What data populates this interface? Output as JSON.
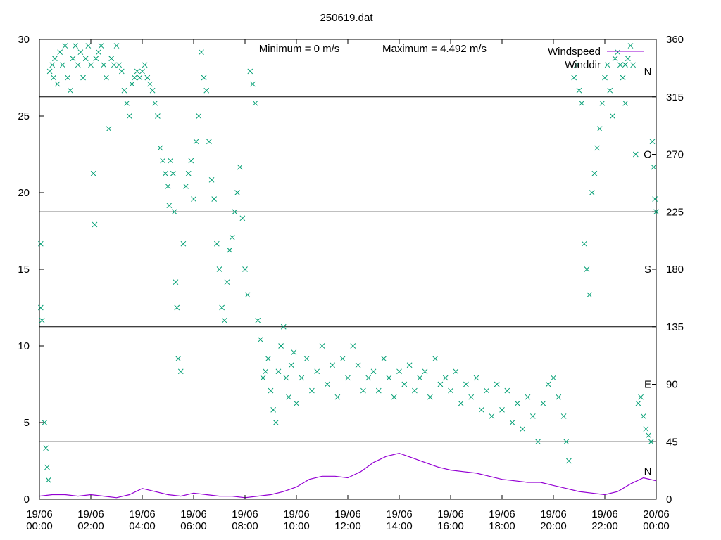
{
  "chart_data": {
    "type": "line",
    "title": "250619.dat",
    "annotations": {
      "minimum": "Minimum = 0 m/s",
      "maximum": "Maximum = 4.492 m/s"
    },
    "x_axis": {
      "range_hours": [
        0,
        24
      ],
      "ticks": [
        {
          "hour": 0,
          "line1": "19/06",
          "line2": "00:00"
        },
        {
          "hour": 2,
          "line1": "19/06",
          "line2": "02:00"
        },
        {
          "hour": 4,
          "line1": "19/06",
          "line2": "04:00"
        },
        {
          "hour": 6,
          "line1": "19/06",
          "line2": "06:00"
        },
        {
          "hour": 8,
          "line1": "19/06",
          "line2": "08:00"
        },
        {
          "hour": 10,
          "line1": "19/06",
          "line2": "10:00"
        },
        {
          "hour": 12,
          "line1": "19/06",
          "line2": "12:00"
        },
        {
          "hour": 14,
          "line1": "19/06",
          "line2": "14:00"
        },
        {
          "hour": 16,
          "line1": "19/06",
          "line2": "16:00"
        },
        {
          "hour": 18,
          "line1": "19/06",
          "line2": "18:00"
        },
        {
          "hour": 20,
          "line1": "19/06",
          "line2": "20:00"
        },
        {
          "hour": 22,
          "line1": "19/06",
          "line2": "22:00"
        },
        {
          "hour": 24,
          "line1": "20/06",
          "line2": "00:00"
        }
      ]
    },
    "y_left": {
      "range": [
        0,
        30
      ],
      "ticks": [
        "0",
        "5",
        "10",
        "15",
        "20",
        "25",
        "30"
      ]
    },
    "y_right": {
      "range": [
        0,
        360
      ],
      "ticks": [
        "0",
        "45",
        "90",
        "135",
        "180",
        "225",
        "270",
        "315",
        "360"
      ],
      "gridlines": [
        45,
        135,
        225,
        315
      ],
      "compass": [
        {
          "value": 22,
          "label": "N"
        },
        {
          "value": 90,
          "label": "E"
        },
        {
          "value": 180,
          "label": "S"
        },
        {
          "value": 270,
          "label": "O"
        },
        {
          "value": 335,
          "label": "N"
        }
      ]
    },
    "legend": {
      "position": "top-right",
      "items": [
        "Windspeed",
        "Winddir"
      ]
    },
    "colors": {
      "windspeed": "#9400d3",
      "winddir": "#009e73"
    },
    "series": [
      {
        "name": "Windspeed",
        "axis": "left",
        "style": "line",
        "x": [
          0,
          0.5,
          1,
          1.5,
          2,
          2.5,
          3,
          3.5,
          4,
          4.5,
          5,
          5.5,
          6,
          6.5,
          7,
          7.5,
          8,
          8.5,
          9,
          9.5,
          10,
          10.5,
          11,
          11.5,
          12,
          12.5,
          13,
          13.5,
          14,
          14.5,
          15,
          15.5,
          16,
          16.5,
          17,
          17.5,
          18,
          18.5,
          19,
          19.5,
          20,
          20.5,
          21,
          21.5,
          22,
          22.5,
          23,
          23.5,
          24
        ],
        "y": [
          0.2,
          0.3,
          0.3,
          0.2,
          0.3,
          0.2,
          0.1,
          0.3,
          0.7,
          0.5,
          0.3,
          0.2,
          0.4,
          0.3,
          0.2,
          0.2,
          0.1,
          0.2,
          0.3,
          0.5,
          0.8,
          1.3,
          1.5,
          1.5,
          1.4,
          1.8,
          2.4,
          2.8,
          3.0,
          2.7,
          2.4,
          2.1,
          1.9,
          1.8,
          1.7,
          1.5,
          1.3,
          1.2,
          1.1,
          1.1,
          0.9,
          0.7,
          0.5,
          0.4,
          0.3,
          0.5,
          1.0,
          1.4,
          1.2
        ]
      },
      {
        "name": "Winddir",
        "axis": "right",
        "style": "points",
        "points": [
          [
            0.05,
            200
          ],
          [
            0.05,
            150
          ],
          [
            0.1,
            140
          ],
          [
            0.2,
            60
          ],
          [
            0.25,
            40
          ],
          [
            0.3,
            25
          ],
          [
            0.35,
            15
          ],
          [
            0.4,
            335
          ],
          [
            0.5,
            340
          ],
          [
            0.55,
            330
          ],
          [
            0.6,
            345
          ],
          [
            0.7,
            325
          ],
          [
            0.8,
            350
          ],
          [
            0.9,
            340
          ],
          [
            1.0,
            355
          ],
          [
            1.1,
            330
          ],
          [
            1.2,
            320
          ],
          [
            1.3,
            345
          ],
          [
            1.4,
            355
          ],
          [
            1.5,
            340
          ],
          [
            1.6,
            350
          ],
          [
            1.7,
            330
          ],
          [
            1.8,
            345
          ],
          [
            1.9,
            355
          ],
          [
            2.0,
            340
          ],
          [
            2.1,
            255
          ],
          [
            2.15,
            215
          ],
          [
            2.2,
            345
          ],
          [
            2.3,
            350
          ],
          [
            2.4,
            355
          ],
          [
            2.5,
            340
          ],
          [
            2.6,
            330
          ],
          [
            2.7,
            290
          ],
          [
            2.8,
            345
          ],
          [
            2.9,
            340
          ],
          [
            3.0,
            355
          ],
          [
            3.1,
            340
          ],
          [
            3.2,
            335
          ],
          [
            3.3,
            320
          ],
          [
            3.4,
            310
          ],
          [
            3.5,
            300
          ],
          [
            3.6,
            325
          ],
          [
            3.7,
            330
          ],
          [
            3.8,
            335
          ],
          [
            3.9,
            330
          ],
          [
            4.0,
            335
          ],
          [
            4.1,
            340
          ],
          [
            4.2,
            330
          ],
          [
            4.3,
            325
          ],
          [
            4.4,
            320
          ],
          [
            4.5,
            310
          ],
          [
            4.6,
            300
          ],
          [
            4.7,
            275
          ],
          [
            4.8,
            265
          ],
          [
            4.9,
            255
          ],
          [
            5.0,
            245
          ],
          [
            5.05,
            230
          ],
          [
            5.1,
            265
          ],
          [
            5.2,
            255
          ],
          [
            5.25,
            225
          ],
          [
            5.3,
            170
          ],
          [
            5.35,
            150
          ],
          [
            5.4,
            110
          ],
          [
            5.5,
            100
          ],
          [
            5.6,
            200
          ],
          [
            5.7,
            245
          ],
          [
            5.8,
            255
          ],
          [
            5.9,
            265
          ],
          [
            6.0,
            235
          ],
          [
            6.1,
            280
          ],
          [
            6.2,
            300
          ],
          [
            6.3,
            350
          ],
          [
            6.4,
            330
          ],
          [
            6.5,
            320
          ],
          [
            6.6,
            280
          ],
          [
            6.7,
            250
          ],
          [
            6.8,
            235
          ],
          [
            6.9,
            200
          ],
          [
            7.0,
            180
          ],
          [
            7.1,
            150
          ],
          [
            7.2,
            140
          ],
          [
            7.3,
            170
          ],
          [
            7.4,
            195
          ],
          [
            7.5,
            205
          ],
          [
            7.6,
            225
          ],
          [
            7.7,
            240
          ],
          [
            7.8,
            260
          ],
          [
            7.9,
            220
          ],
          [
            8.0,
            180
          ],
          [
            8.1,
            160
          ],
          [
            8.2,
            335
          ],
          [
            8.3,
            325
          ],
          [
            8.4,
            310
          ],
          [
            8.5,
            140
          ],
          [
            8.6,
            125
          ],
          [
            8.7,
            95
          ],
          [
            8.8,
            100
          ],
          [
            8.9,
            110
          ],
          [
            9.0,
            85
          ],
          [
            9.1,
            70
          ],
          [
            9.2,
            60
          ],
          [
            9.3,
            100
          ],
          [
            9.4,
            120
          ],
          [
            9.5,
            135
          ],
          [
            9.6,
            95
          ],
          [
            9.7,
            80
          ],
          [
            9.8,
            105
          ],
          [
            9.9,
            115
          ],
          [
            10.0,
            75
          ],
          [
            10.2,
            95
          ],
          [
            10.4,
            110
          ],
          [
            10.6,
            85
          ],
          [
            10.8,
            100
          ],
          [
            11.0,
            120
          ],
          [
            11.2,
            90
          ],
          [
            11.4,
            105
          ],
          [
            11.6,
            80
          ],
          [
            11.8,
            110
          ],
          [
            12.0,
            95
          ],
          [
            12.2,
            120
          ],
          [
            12.4,
            105
          ],
          [
            12.6,
            85
          ],
          [
            12.8,
            95
          ],
          [
            13.0,
            100
          ],
          [
            13.2,
            85
          ],
          [
            13.4,
            110
          ],
          [
            13.6,
            95
          ],
          [
            13.8,
            80
          ],
          [
            14.0,
            100
          ],
          [
            14.2,
            90
          ],
          [
            14.4,
            105
          ],
          [
            14.6,
            85
          ],
          [
            14.8,
            95
          ],
          [
            15.0,
            100
          ],
          [
            15.2,
            80
          ],
          [
            15.4,
            110
          ],
          [
            15.6,
            90
          ],
          [
            15.8,
            95
          ],
          [
            16.0,
            85
          ],
          [
            16.2,
            100
          ],
          [
            16.4,
            75
          ],
          [
            16.6,
            90
          ],
          [
            16.8,
            80
          ],
          [
            17.0,
            95
          ],
          [
            17.2,
            70
          ],
          [
            17.4,
            85
          ],
          [
            17.6,
            65
          ],
          [
            17.8,
            90
          ],
          [
            18.0,
            70
          ],
          [
            18.2,
            85
          ],
          [
            18.4,
            60
          ],
          [
            18.6,
            75
          ],
          [
            18.8,
            55
          ],
          [
            19.0,
            80
          ],
          [
            19.2,
            65
          ],
          [
            19.4,
            45
          ],
          [
            19.6,
            75
          ],
          [
            19.8,
            90
          ],
          [
            20.0,
            95
          ],
          [
            20.2,
            80
          ],
          [
            20.4,
            65
          ],
          [
            20.5,
            45
          ],
          [
            20.6,
            30
          ],
          [
            20.8,
            330
          ],
          [
            20.9,
            340
          ],
          [
            21.0,
            320
          ],
          [
            21.1,
            310
          ],
          [
            21.2,
            200
          ],
          [
            21.3,
            180
          ],
          [
            21.4,
            160
          ],
          [
            21.5,
            240
          ],
          [
            21.6,
            255
          ],
          [
            21.7,
            275
          ],
          [
            21.8,
            290
          ],
          [
            21.9,
            310
          ],
          [
            22.0,
            330
          ],
          [
            22.1,
            340
          ],
          [
            22.2,
            320
          ],
          [
            22.3,
            300
          ],
          [
            22.4,
            345
          ],
          [
            22.5,
            350
          ],
          [
            22.6,
            340
          ],
          [
            22.7,
            330
          ],
          [
            22.8,
            310
          ],
          [
            22.9,
            345
          ],
          [
            23.0,
            355
          ],
          [
            23.1,
            340
          ],
          [
            23.2,
            270
          ],
          [
            23.3,
            75
          ],
          [
            23.4,
            80
          ],
          [
            23.5,
            65
          ],
          [
            23.6,
            55
          ],
          [
            23.7,
            50
          ],
          [
            23.8,
            45
          ],
          [
            23.85,
            280
          ],
          [
            23.9,
            260
          ],
          [
            23.95,
            235
          ],
          [
            24.0,
            225
          ]
        ]
      }
    ]
  }
}
